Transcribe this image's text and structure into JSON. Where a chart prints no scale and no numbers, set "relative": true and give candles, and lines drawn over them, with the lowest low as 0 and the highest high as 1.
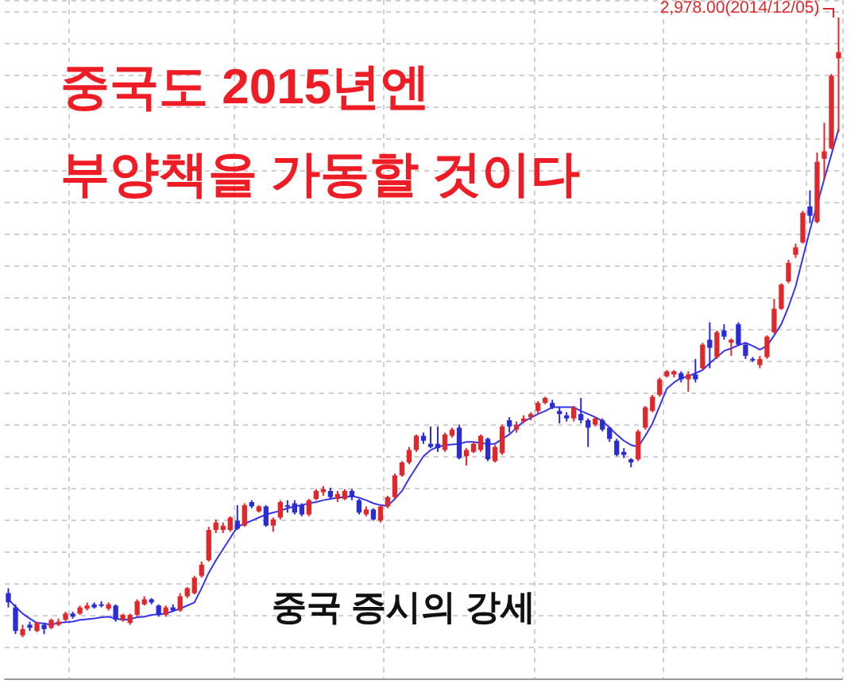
{
  "chart_data": {
    "type": "candlestick",
    "title": "중국도 2015년엔",
    "subtitle": "부양책을 가동할 것이다",
    "annotations": [
      "2,978.00(2014/12/05)",
      "중국 증시의 강세"
    ],
    "relative": true,
    "grid": true,
    "tick_labels": false,
    "categories": [
      null,
      null,
      null,
      null,
      null,
      null,
      null,
      null,
      null,
      null,
      null,
      null,
      null,
      null,
      null,
      null,
      null,
      null,
      null,
      null,
      null,
      null,
      null,
      null,
      null,
      null,
      null,
      null,
      null,
      null,
      null,
      null,
      null,
      null,
      null,
      null,
      null,
      null,
      null,
      null,
      null,
      null,
      null,
      null,
      null,
      null,
      null,
      null,
      null,
      null,
      null,
      null,
      null,
      null,
      null,
      null,
      null,
      null,
      null,
      null,
      null,
      null,
      null,
      null,
      null,
      null,
      null,
      null,
      null,
      null,
      null,
      null,
      null,
      null,
      null,
      null,
      null,
      null,
      null,
      null,
      null,
      null,
      null,
      null,
      null,
      null,
      null,
      null,
      null,
      null,
      null,
      null,
      null,
      null,
      null,
      null,
      null,
      null,
      null,
      null,
      null,
      null,
      null,
      null,
      null,
      null,
      null,
      null,
      null,
      null,
      null,
      null,
      null,
      null,
      null,
      null,
      null
    ],
    "ohlc": [
      [
        0.071,
        0.079,
        0.048,
        0.056
      ],
      [
        0.048,
        0.053,
        0.005,
        0.01
      ],
      [
        0.003,
        0.02,
        0,
        0.013
      ],
      [
        0.02,
        0.025,
        0.01,
        0.015
      ],
      [
        0.01,
        0.025,
        0.008,
        0.023
      ],
      [
        0.02,
        0.023,
        0.005,
        0.013
      ],
      [
        0.015,
        0.03,
        0.013,
        0.028
      ],
      [
        0.02,
        0.03,
        0.018,
        0.025
      ],
      [
        0.028,
        0.041,
        0.025,
        0.038
      ],
      [
        0.038,
        0.041,
        0.03,
        0.033
      ],
      [
        0.038,
        0.051,
        0.036,
        0.048
      ],
      [
        0.046,
        0.056,
        0.043,
        0.051
      ],
      [
        0.053,
        0.056,
        0.046,
        0.048
      ],
      [
        0.053,
        0.058,
        0.048,
        0.051
      ],
      [
        0.046,
        0.056,
        0.043,
        0.053
      ],
      [
        0.051,
        0.053,
        0.025,
        0.028
      ],
      [
        0.028,
        0.038,
        0.025,
        0.036
      ],
      [
        0.023,
        0.038,
        0.02,
        0.036
      ],
      [
        0.036,
        0.061,
        0.033,
        0.058
      ],
      [
        0.053,
        0.066,
        0.051,
        0.061
      ],
      [
        0.061,
        0.063,
        0.053,
        0.056
      ],
      [
        0.051,
        0.053,
        0.033,
        0.036
      ],
      [
        0.036,
        0.051,
        0.033,
        0.048
      ],
      [
        0.048,
        0.053,
        0.041,
        0.043
      ],
      [
        0.043,
        0.071,
        0.041,
        0.066
      ],
      [
        0.066,
        0.081,
        0.063,
        0.079
      ],
      [
        0.071,
        0.099,
        0.069,
        0.096
      ],
      [
        0.099,
        0.122,
        0.096,
        0.117
      ],
      [
        0.124,
        0.178,
        0.122,
        0.173
      ],
      [
        0.173,
        0.19,
        0.168,
        0.185
      ],
      [
        0.173,
        0.185,
        0.168,
        0.18
      ],
      [
        0.173,
        0.195,
        0.17,
        0.193
      ],
      [
        0.188,
        0.213,
        0.173,
        0.175
      ],
      [
        0.18,
        0.216,
        0.178,
        0.213
      ],
      [
        0.218,
        0.221,
        0.208,
        0.211
      ],
      [
        0.203,
        0.213,
        0.201,
        0.211
      ],
      [
        0.211,
        0.213,
        0.178,
        0.18
      ],
      [
        0.18,
        0.193,
        0.17,
        0.19
      ],
      [
        0.193,
        0.221,
        0.19,
        0.218
      ],
      [
        0.213,
        0.221,
        0.201,
        0.211
      ],
      [
        0.216,
        0.221,
        0.198,
        0.201
      ],
      [
        0.213,
        0.216,
        0.195,
        0.198
      ],
      [
        0.198,
        0.223,
        0.195,
        0.221
      ],
      [
        0.223,
        0.239,
        0.221,
        0.236
      ],
      [
        0.234,
        0.244,
        0.228,
        0.239
      ],
      [
        0.236,
        0.241,
        0.223,
        0.226
      ],
      [
        0.223,
        0.236,
        0.218,
        0.231
      ],
      [
        0.223,
        0.239,
        0.221,
        0.236
      ],
      [
        0.236,
        0.239,
        0.221,
        0.226
      ],
      [
        0.221,
        0.223,
        0.198,
        0.201
      ],
      [
        0.198,
        0.211,
        0.195,
        0.206
      ],
      [
        0.206,
        0.208,
        0.188,
        0.19
      ],
      [
        0.188,
        0.213,
        0.185,
        0.211
      ],
      [
        0.211,
        0.228,
        0.208,
        0.226
      ],
      [
        0.226,
        0.264,
        0.223,
        0.261
      ],
      [
        0.261,
        0.284,
        0.259,
        0.282
      ],
      [
        0.282,
        0.307,
        0.279,
        0.302
      ],
      [
        0.302,
        0.327,
        0.299,
        0.325
      ],
      [
        0.325,
        0.33,
        0.312,
        0.317
      ],
      [
        0.312,
        0.34,
        0.305,
        0.307
      ],
      [
        0.312,
        0.34,
        0.299,
        0.305
      ],
      [
        0.302,
        0.33,
        0.299,
        0.327
      ],
      [
        0.325,
        0.338,
        0.322,
        0.335
      ],
      [
        0.338,
        0.343,
        0.287,
        0.289
      ],
      [
        0.292,
        0.305,
        0.277,
        0.302
      ],
      [
        0.299,
        0.315,
        0.297,
        0.312
      ],
      [
        0.302,
        0.327,
        0.299,
        0.325
      ],
      [
        0.32,
        0.322,
        0.284,
        0.287
      ],
      [
        0.284,
        0.31,
        0.282,
        0.307
      ],
      [
        0.297,
        0.343,
        0.294,
        0.34
      ],
      [
        0.35,
        0.355,
        0.33,
        0.34
      ],
      [
        0.335,
        0.348,
        0.33,
        0.343
      ],
      [
        0.348,
        0.358,
        0.345,
        0.353
      ],
      [
        0.355,
        0.363,
        0.35,
        0.36
      ],
      [
        0.365,
        0.381,
        0.36,
        0.378
      ],
      [
        0.378,
        0.388,
        0.376,
        0.386
      ],
      [
        0.378,
        0.383,
        0.368,
        0.371
      ],
      [
        0.365,
        0.371,
        0.345,
        0.36
      ],
      [
        0.358,
        0.363,
        0.348,
        0.353
      ],
      [
        0.353,
        0.373,
        0.348,
        0.371
      ],
      [
        0.36,
        0.386,
        0.345,
        0.35
      ],
      [
        0.35,
        0.353,
        0.307,
        0.338
      ],
      [
        0.343,
        0.355,
        0.34,
        0.353
      ],
      [
        0.35,
        0.353,
        0.332,
        0.335
      ],
      [
        0.338,
        0.34,
        0.315,
        0.32
      ],
      [
        0.317,
        0.32,
        0.292,
        0.294
      ],
      [
        0.299,
        0.305,
        0.289,
        0.294
      ],
      [
        0.287,
        0.289,
        0.274,
        0.282
      ],
      [
        0.287,
        0.335,
        0.284,
        0.332
      ],
      [
        0.338,
        0.373,
        0.335,
        0.371
      ],
      [
        0.365,
        0.391,
        0.363,
        0.388
      ],
      [
        0.391,
        0.419,
        0.388,
        0.416
      ],
      [
        0.421,
        0.431,
        0.419,
        0.429
      ],
      [
        0.424,
        0.431,
        0.419,
        0.429
      ],
      [
        0.426,
        0.429,
        0.411,
        0.416
      ],
      [
        0.416,
        0.429,
        0.396,
        0.424
      ],
      [
        0.424,
        0.449,
        0.411,
        0.416
      ],
      [
        0.434,
        0.475,
        0.431,
        0.472
      ],
      [
        0.48,
        0.508,
        0.434,
        0.467
      ],
      [
        0.452,
        0.495,
        0.449,
        0.492
      ],
      [
        0.495,
        0.505,
        0.48,
        0.485
      ],
      [
        0.475,
        0.482,
        0.454,
        0.48
      ],
      [
        0.505,
        0.508,
        0.47,
        0.472
      ],
      [
        0.472,
        0.475,
        0.449,
        0.454
      ],
      [
        0.449,
        0.452,
        0.444,
        0.447
      ],
      [
        0.439,
        0.454,
        0.434,
        0.449
      ],
      [
        0.452,
        0.487,
        0.449,
        0.485
      ],
      [
        0.492,
        0.546,
        0.49,
        0.53
      ],
      [
        0.53,
        0.571,
        0.528,
        0.569
      ],
      [
        0.574,
        0.609,
        0.571,
        0.604
      ],
      [
        0.617,
        0.635,
        0.612,
        0.629
      ],
      [
        0.637,
        0.688,
        0.635,
        0.685
      ],
      [
        0.695,
        0.721,
        0.668,
        0.68
      ],
      [
        0.67,
        0.782,
        0.668,
        0.767
      ],
      [
        0.772,
        0.83,
        0.739,
        0.784
      ],
      [
        0.789,
        0.909,
        0.787,
        0.906
      ],
      [
        0.934,
        1,
        0.815,
        0.944
      ]
    ],
    "colors": [
      "#2c2cd4",
      "#2c2cd4",
      "#e0282c",
      "#2c2cd4",
      "#e0282c",
      "#2c2cd4",
      "#e0282c",
      "#e0282c",
      "#e0282c",
      "#2c2cd4",
      "#e0282c",
      "#e0282c",
      "#2c2cd4",
      "#2c2cd4",
      "#e0282c",
      "#2c2cd4",
      "#e0282c",
      "#e0282c",
      "#e0282c",
      "#e0282c",
      "#2c2cd4",
      "#2c2cd4",
      "#e0282c",
      "#2c2cd4",
      "#e0282c",
      "#e0282c",
      "#e0282c",
      "#e0282c",
      "#e0282c",
      "#e0282c",
      "#e0282c",
      "#e0282c",
      "#2c2cd4",
      "#e0282c",
      "#2c2cd4",
      "#e0282c",
      "#2c2cd4",
      "#e0282c",
      "#e0282c",
      "#2c2cd4",
      "#2c2cd4",
      "#2c2cd4",
      "#e0282c",
      "#e0282c",
      "#e0282c",
      "#2c2cd4",
      "#e0282c",
      "#e0282c",
      "#2c2cd4",
      "#2c2cd4",
      "#e0282c",
      "#2c2cd4",
      "#e0282c",
      "#e0282c",
      "#e0282c",
      "#e0282c",
      "#e0282c",
      "#e0282c",
      "#2c2cd4",
      "#2c2cd4",
      "#2c2cd4",
      "#e0282c",
      "#e0282c",
      "#2c2cd4",
      "#e0282c",
      "#e0282c",
      "#e0282c",
      "#2c2cd4",
      "#e0282c",
      "#e0282c",
      "#2c2cd4",
      "#e0282c",
      "#e0282c",
      "#e0282c",
      "#e0282c",
      "#e0282c",
      "#2c2cd4",
      "#2c2cd4",
      "#2c2cd4",
      "#e0282c",
      "#2c2cd4",
      "#2c2cd4",
      "#e0282c",
      "#2c2cd4",
      "#2c2cd4",
      "#2c2cd4",
      "#2c2cd4",
      "#2c2cd4",
      "#e0282c",
      "#e0282c",
      "#e0282c",
      "#e0282c",
      "#e0282c",
      "#e0282c",
      "#2c2cd4",
      "#e0282c",
      "#2c2cd4",
      "#e0282c",
      "#2c2cd4",
      "#e0282c",
      "#2c2cd4",
      "#e0282c",
      "#2c2cd4",
      "#2c2cd4",
      "#2c2cd4",
      "#e0282c",
      "#e0282c",
      "#e0282c",
      "#e0282c",
      "#e0282c",
      "#e0282c",
      "#e0282c",
      "#2c2cd4",
      "#e0282c",
      "#e0282c",
      "#e0282c",
      "#e0282c"
    ],
    "series": [
      {
        "type": "line",
        "color": "#3535f0",
        "values": [
          0.061,
          0.049,
          0.038,
          0.03,
          0.023,
          0.022,
          0.02,
          0.023,
          0.024,
          0.025,
          0.028,
          0.029,
          0.03,
          0.032,
          0.033,
          0.03,
          0.028,
          0.029,
          0.032,
          0.033,
          0.036,
          0.037,
          0.038,
          0.042,
          0.046,
          0.051,
          0.056,
          0.079,
          0.104,
          0.124,
          0.142,
          0.16,
          0.178,
          0.183,
          0.188,
          0.193,
          0.198,
          0.201,
          0.204,
          0.208,
          0.211,
          0.213,
          0.216,
          0.218,
          0.221,
          0.223,
          0.225,
          0.226,
          0.228,
          0.225,
          0.221,
          0.216,
          0.213,
          0.212,
          0.223,
          0.236,
          0.256,
          0.274,
          0.292,
          0.302,
          0.307,
          0.31,
          0.311,
          0.312,
          0.315,
          0.315,
          0.313,
          0.312,
          0.312,
          0.32,
          0.327,
          0.338,
          0.348,
          0.354,
          0.36,
          0.365,
          0.371,
          0.371,
          0.371,
          0.371,
          0.365,
          0.36,
          0.355,
          0.349,
          0.338,
          0.327,
          0.317,
          0.31,
          0.307,
          0.325,
          0.345,
          0.373,
          0.401,
          0.411,
          0.418,
          0.421,
          0.426,
          0.431,
          0.442,
          0.452,
          0.462,
          0.466,
          0.471,
          0.475,
          0.47,
          0.464,
          0.47,
          0.487,
          0.505,
          0.533,
          0.566,
          0.612,
          0.657,
          0.698,
          0.739,
          0.779,
          0.82
        ]
      }
    ]
  }
}
